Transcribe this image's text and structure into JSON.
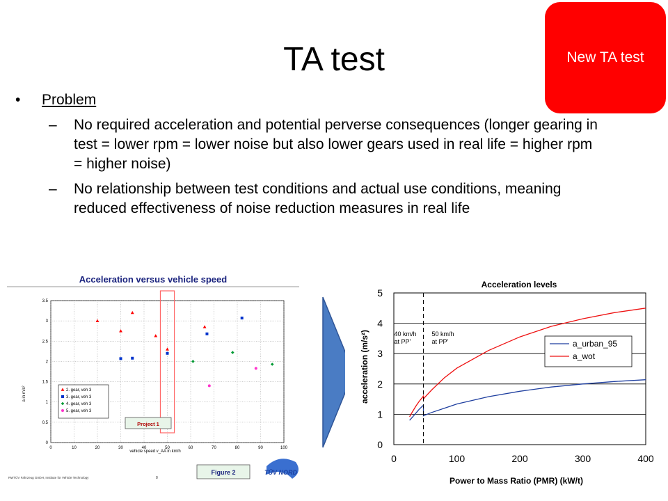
{
  "slide": {
    "title": "TA test",
    "badge": "New TA test",
    "bullets": [
      {
        "text": "Problem",
        "subs": [
          "No required acceleration and potential perverse consequences (longer gearing in test = lower rpm = lower noise but also lower gears used in real life = higher rpm = higher noise)",
          "No relationship between test conditions and actual use conditions, meaning reduced effectiveness of noise reduction measures in real life"
        ]
      }
    ]
  },
  "colors": {
    "badge": "#ff0000",
    "arrow": "#4a7cc4"
  },
  "chart_data": [
    {
      "type": "scatter",
      "title": "Acceleration versus vehicle speed",
      "xlabel": "vehicle speed v_AA in km/h",
      "ylabel": "a in m/s²",
      "xlim": [
        0,
        100
      ],
      "ylim": [
        0,
        3.5
      ],
      "xticks": [
        0,
        10,
        20,
        30,
        40,
        50,
        60,
        70,
        80,
        90,
        100
      ],
      "yticks": [
        0,
        0.5,
        1,
        1.5,
        2,
        2.5,
        3,
        3.5
      ],
      "grid": true,
      "legend": "bottom-left",
      "series": [
        {
          "name": "2. gear, veh 3",
          "color": "#ff0000",
          "marker": "triangle",
          "points": [
            [
              20,
              3.0
            ],
            [
              30,
              2.75
            ],
            [
              35,
              3.2
            ],
            [
              45,
              2.63
            ],
            [
              50,
              2.3
            ],
            [
              66,
              2.85
            ]
          ]
        },
        {
          "name": "3. gear, veh 3",
          "color": "#0033cc",
          "marker": "square",
          "points": [
            [
              30,
              2.07
            ],
            [
              35,
              2.08
            ],
            [
              50,
              2.2
            ],
            [
              67,
              2.68
            ],
            [
              82,
              3.07
            ]
          ]
        },
        {
          "name": "4. gear, veh 3",
          "color": "#009933",
          "marker": "diamond",
          "points": [
            [
              61,
              2.0
            ],
            [
              78,
              2.22
            ],
            [
              95,
              1.93
            ]
          ]
        },
        {
          "name": "5. gear, veh 3",
          "color": "#ff33cc",
          "marker": "circle",
          "points": [
            [
              68,
              1.4
            ],
            [
              88,
              1.83
            ]
          ]
        }
      ],
      "annotations": {
        "project_label": "Project 1",
        "figure_label": "Figure 2",
        "footer": "RWTÜV Fahrzeug GmbH, Institute for Vehicle Technology",
        "page_number": "8",
        "logo": "TÜV NORD"
      }
    },
    {
      "type": "line",
      "title": "Acceleration levels",
      "xlabel": "Power to Mass Ratio (PMR) (kW/t)",
      "ylabel": "acceleration (m/s²)",
      "xlim": [
        0,
        400
      ],
      "ylim": [
        0,
        5
      ],
      "xticks": [
        0,
        100,
        200,
        300,
        400
      ],
      "yticks": [
        0,
        1,
        2,
        3,
        4,
        5
      ],
      "grid": true,
      "legend": "center-right",
      "annotations": [
        {
          "lines": [
            "40 km/h",
            "at PP'"
          ]
        },
        {
          "lines": [
            "50 km/h",
            "at PP'"
          ]
        }
      ],
      "vline_x": 47,
      "series": [
        {
          "name": "a_urban_95",
          "color": "#1f3f9f",
          "x": [
            25,
            30,
            35,
            40,
            47,
            47,
            50,
            60,
            80,
            100,
            150,
            200,
            250,
            300,
            350,
            400
          ],
          "y": [
            0.8,
            0.92,
            1.04,
            1.16,
            1.3,
            0.95,
            0.98,
            1.06,
            1.2,
            1.34,
            1.58,
            1.76,
            1.9,
            2.0,
            2.08,
            2.14
          ]
        },
        {
          "name": "a_wot",
          "color": "#ee1111",
          "x": [
            25,
            30,
            35,
            40,
            47,
            47,
            50,
            60,
            80,
            100,
            150,
            200,
            250,
            300,
            350,
            400
          ],
          "y": [
            0.92,
            1.1,
            1.27,
            1.42,
            1.6,
            1.5,
            1.58,
            1.8,
            2.2,
            2.52,
            3.1,
            3.55,
            3.9,
            4.15,
            4.35,
            4.5
          ]
        }
      ]
    }
  ]
}
